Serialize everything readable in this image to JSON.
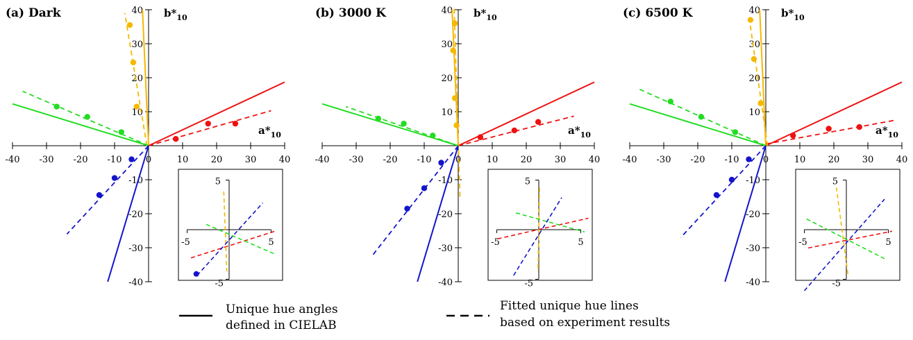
{
  "colors": {
    "red": "#ee1111",
    "yellow": "#f5b800",
    "green": "#22dd22",
    "blue": "#1414cc",
    "axis": "#000000"
  },
  "legend": {
    "solid_line": [
      "Unique hue angles",
      "defined in CIELAB"
    ],
    "dashed_line": [
      "Fitted unique hue lines",
      "based on experiment results"
    ]
  },
  "chart_data": [
    {
      "type": "scatter",
      "title": "(a) Dark",
      "xlabel": "a*10",
      "ylabel": "b*10",
      "xlim": [
        -40,
        40
      ],
      "ylim": [
        -40,
        40
      ],
      "xticks": [
        -40,
        -30,
        -20,
        -10,
        0,
        10,
        20,
        30,
        40
      ],
      "yticks": [
        -40,
        -30,
        -20,
        -10,
        0,
        10,
        20,
        30,
        40
      ],
      "cielab_lines": [
        {
          "hue": "red",
          "from": [
            0,
            0
          ],
          "to": [
            40,
            18.7
          ]
        },
        {
          "hue": "yellow",
          "from": [
            0,
            0
          ],
          "to": [
            -1.8,
            40
          ]
        },
        {
          "hue": "green",
          "from": [
            0,
            0
          ],
          "to": [
            -40,
            12.3
          ]
        },
        {
          "hue": "blue",
          "from": [
            0,
            0
          ],
          "to": [
            -12,
            -40
          ]
        }
      ],
      "fitted_lines": [
        {
          "hue": "red",
          "from": [
            0,
            0
          ],
          "to": [
            36,
            10.3
          ]
        },
        {
          "hue": "yellow",
          "from": [
            -0.5,
            0
          ],
          "to": [
            -7,
            39
          ]
        },
        {
          "hue": "green",
          "from": [
            0,
            0
          ],
          "to": [
            -37,
            16
          ]
        },
        {
          "hue": "blue",
          "from": [
            0,
            0
          ],
          "to": [
            -24,
            -26
          ]
        }
      ],
      "points": [
        {
          "hue": "red",
          "x": 8,
          "y": 2
        },
        {
          "hue": "red",
          "x": 17.5,
          "y": 6.5
        },
        {
          "hue": "red",
          "x": 25.5,
          "y": 6.5
        },
        {
          "hue": "yellow",
          "x": -3.5,
          "y": 11.5
        },
        {
          "hue": "yellow",
          "x": -4.5,
          "y": 24.5
        },
        {
          "hue": "yellow",
          "x": -5.5,
          "y": 35.5
        },
        {
          "hue": "green",
          "x": -8,
          "y": 4
        },
        {
          "hue": "green",
          "x": -18,
          "y": 8.5
        },
        {
          "hue": "green",
          "x": -27,
          "y": 11.5
        },
        {
          "hue": "blue",
          "x": -5,
          "y": -4
        },
        {
          "hue": "blue",
          "x": -10,
          "y": -9.5
        },
        {
          "hue": "blue",
          "x": -14.5,
          "y": -14.5
        }
      ],
      "inset": {
        "ticks": [
          "5",
          "-5",
          "-5",
          "5"
        ],
        "fitted_lines": [
          {
            "hue": "red",
            "from": [
              -5,
              -3.7
            ],
            "to": [
              6,
              -0.2
            ]
          },
          {
            "hue": "yellow",
            "from": [
              -0.7,
              5
            ],
            "to": [
              -0.3,
              -5.5
            ]
          },
          {
            "hue": "green",
            "from": [
              -3,
              0.7
            ],
            "to": [
              6,
              -3.2
            ]
          },
          {
            "hue": "blue",
            "from": [
              -4.2,
              -6
            ],
            "to": [
              4.4,
              3.5
            ]
          }
        ],
        "points": [
          {
            "hue": "blue",
            "x": -4.3,
            "y": -5.8
          }
        ]
      }
    },
    {
      "type": "scatter",
      "title": "(b) 3000 K",
      "xlabel": "a*10",
      "ylabel": "b*10",
      "xlim": [
        -40,
        40
      ],
      "ylim": [
        -40,
        40
      ],
      "xticks": [
        -40,
        -30,
        -20,
        -10,
        0,
        10,
        20,
        30,
        40
      ],
      "yticks": [
        -40,
        -30,
        -20,
        -10,
        0,
        10,
        20,
        30,
        40
      ],
      "cielab_lines": [
        {
          "hue": "red",
          "from": [
            0,
            0
          ],
          "to": [
            40,
            18.7
          ]
        },
        {
          "hue": "yellow",
          "from": [
            0,
            0
          ],
          "to": [
            -1.8,
            40
          ]
        },
        {
          "hue": "green",
          "from": [
            0,
            0
          ],
          "to": [
            -40,
            12.3
          ]
        },
        {
          "hue": "blue",
          "from": [
            0,
            0
          ],
          "to": [
            -12,
            -40
          ]
        }
      ],
      "fitted_lines": [
        {
          "hue": "red",
          "from": [
            0,
            0
          ],
          "to": [
            34,
            8.7
          ]
        },
        {
          "hue": "yellow",
          "from": [
            0.5,
            -15
          ],
          "to": [
            -1.2,
            41
          ]
        },
        {
          "hue": "green",
          "from": [
            0,
            0
          ],
          "to": [
            -33,
            11.5
          ]
        },
        {
          "hue": "blue",
          "from": [
            0,
            0
          ],
          "to": [
            -25,
            -32
          ]
        }
      ],
      "points": [
        {
          "hue": "red",
          "x": 6.5,
          "y": 2.5
        },
        {
          "hue": "red",
          "x": 16.5,
          "y": 4.5
        },
        {
          "hue": "red",
          "x": 23.5,
          "y": 7
        },
        {
          "hue": "yellow",
          "x": -0.5,
          "y": 6
        },
        {
          "hue": "yellow",
          "x": -1,
          "y": 14
        },
        {
          "hue": "yellow",
          "x": -1.5,
          "y": 28
        },
        {
          "hue": "yellow",
          "x": -1,
          "y": 36
        },
        {
          "hue": "green",
          "x": -7.5,
          "y": 3
        },
        {
          "hue": "green",
          "x": -16,
          "y": 6.5
        },
        {
          "hue": "green",
          "x": -23.5,
          "y": 8
        },
        {
          "hue": "blue",
          "x": -5,
          "y": -5
        },
        {
          "hue": "blue",
          "x": -10,
          "y": -12.5
        },
        {
          "hue": "blue",
          "x": -15,
          "y": -18.5
        }
      ],
      "inset": {
        "ticks": [
          "5",
          "-5",
          "-5",
          "5"
        ],
        "fitted_lines": [
          {
            "hue": "red",
            "from": [
              -5.4,
              -1.2
            ],
            "to": [
              6.5,
              1.5
            ]
          },
          {
            "hue": "yellow",
            "from": [
              0.1,
              5.5
            ],
            "to": [
              -0.1,
              -5.5
            ]
          },
          {
            "hue": "green",
            "from": [
              -3,
              2.2
            ],
            "to": [
              6,
              -0.3
            ]
          },
          {
            "hue": "blue",
            "from": [
              -3.3,
              -6
            ],
            "to": [
              3,
              4.2
            ]
          }
        ],
        "points": []
      }
    },
    {
      "type": "scatter",
      "title": "(c) 6500 K",
      "xlabel": "a*10",
      "ylabel": "b*10",
      "xlim": [
        -40,
        40
      ],
      "ylim": [
        -40,
        40
      ],
      "xticks": [
        -40,
        -30,
        -20,
        -10,
        0,
        10,
        20,
        30,
        40
      ],
      "yticks": [
        -40,
        -30,
        -20,
        -10,
        0,
        10,
        20,
        30,
        40
      ],
      "cielab_lines": [
        {
          "hue": "red",
          "from": [
            0,
            0
          ],
          "to": [
            40,
            18.7
          ]
        },
        {
          "hue": "yellow",
          "from": [
            0,
            0
          ],
          "to": [
            -1.8,
            40
          ]
        },
        {
          "hue": "green",
          "from": [
            0,
            0
          ],
          "to": [
            -40,
            12.3
          ]
        },
        {
          "hue": "blue",
          "from": [
            0,
            0
          ],
          "to": [
            -12,
            -40
          ]
        }
      ],
      "fitted_lines": [
        {
          "hue": "red",
          "from": [
            0,
            0.5
          ],
          "to": [
            38,
            7.5
          ]
        },
        {
          "hue": "yellow",
          "from": [
            0.5,
            0
          ],
          "to": [
            -5,
            38.5
          ]
        },
        {
          "hue": "green",
          "from": [
            0,
            0
          ],
          "to": [
            -38,
            17
          ]
        },
        {
          "hue": "blue",
          "from": [
            0,
            0
          ],
          "to": [
            -25,
            -27
          ]
        }
      ],
      "points": [
        {
          "hue": "red",
          "x": 8,
          "y": 3
        },
        {
          "hue": "red",
          "x": 18.5,
          "y": 5
        },
        {
          "hue": "red",
          "x": 27.5,
          "y": 5.5
        },
        {
          "hue": "yellow",
          "x": -1.5,
          "y": 12.5
        },
        {
          "hue": "yellow",
          "x": -3.5,
          "y": 25.5
        },
        {
          "hue": "yellow",
          "x": -4.5,
          "y": 37
        },
        {
          "hue": "green",
          "x": -9,
          "y": 4
        },
        {
          "hue": "green",
          "x": -19,
          "y": 8.5
        },
        {
          "hue": "green",
          "x": -28,
          "y": 13
        },
        {
          "hue": "blue",
          "x": -5,
          "y": -4
        },
        {
          "hue": "blue",
          "x": -10,
          "y": -10
        },
        {
          "hue": "blue",
          "x": -14.5,
          "y": -14.5
        }
      ],
      "inset": {
        "ticks": [
          "5",
          "-5",
          "-5",
          "5"
        ],
        "fitted_lines": [
          {
            "hue": "red",
            "from": [
              -5,
              -2.4
            ],
            "to": [
              6,
              -0.2
            ]
          },
          {
            "hue": "yellow",
            "from": [
              0.2,
              -5.8
            ],
            "to": [
              -1.3,
              5.5
            ]
          },
          {
            "hue": "green",
            "from": [
              -5.2,
              1.4
            ],
            "to": [
              5,
              -3.8
            ]
          },
          {
            "hue": "blue",
            "from": [
              -5.5,
              -8
            ],
            "to": [
              5,
              4
            ]
          }
        ],
        "points": []
      }
    }
  ]
}
